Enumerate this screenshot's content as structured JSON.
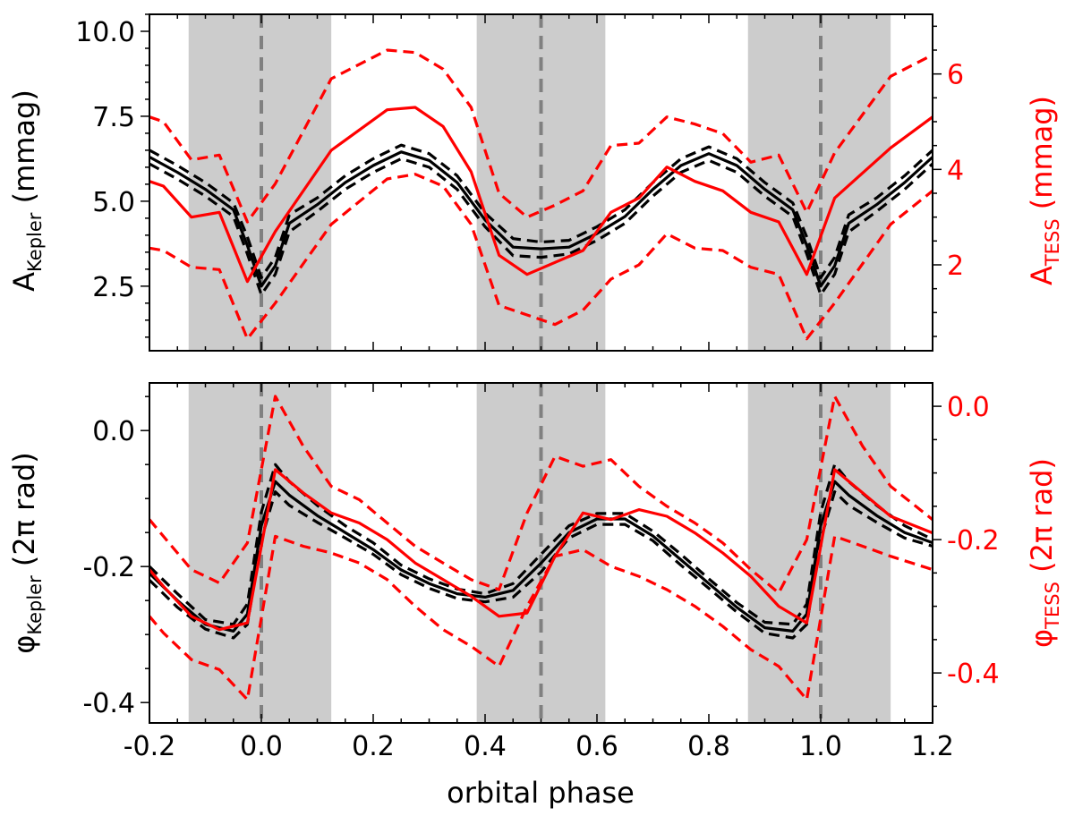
{
  "colors": {
    "kepler": "#000000",
    "tess": "#ff0000",
    "shade": "#cccccc",
    "eclipse_line": "#808080"
  },
  "chart_data": [
    {
      "panel": "top",
      "type": "line",
      "xlabel": "orbital phase",
      "xlim": [
        -0.2,
        1.2
      ],
      "x_ticks": [
        "-0.2",
        "0.0",
        "0.2",
        "0.4",
        "0.6",
        "0.8",
        "1.0",
        "1.2"
      ],
      "ylabel_left": {
        "main": "A",
        "sub": "Kepler",
        "unit": " (mmag)"
      },
      "ylim_left": [
        0.6,
        10.5
      ],
      "y_ticks_left": [
        "2.5",
        "5.0",
        "7.5",
        "10.0"
      ],
      "ylabel_right": {
        "main": "A",
        "sub": "TESS",
        "unit": " (mmag)"
      },
      "ylim_right": [
        0.2,
        7.25
      ],
      "y_ticks_right": [
        "2",
        "4",
        "6"
      ],
      "shaded_phase_ranges": [
        [
          -0.13,
          0.125
        ],
        [
          0.385,
          0.615
        ],
        [
          0.87,
          1.125
        ]
      ],
      "eclipse_phases": [
        0.0,
        0.5,
        1.0
      ],
      "series": [
        {
          "axis": "left",
          "color": "kepler",
          "style": "solid",
          "x": [
            -0.2,
            -0.15,
            -0.1,
            -0.05,
            -0.025,
            0,
            0.025,
            0.05,
            0.1,
            0.15,
            0.2,
            0.25,
            0.3,
            0.35,
            0.4,
            0.45,
            0.5,
            0.55,
            0.6,
            0.65,
            0.7,
            0.75,
            0.8,
            0.85,
            0.9,
            0.95,
            0.975,
            1,
            1.025,
            1.05,
            1.1,
            1.15,
            1.2
          ],
          "y": [
            6.3,
            5.85,
            5.35,
            4.75,
            3.7,
            2.5,
            3.1,
            4.35,
            4.9,
            5.55,
            6.05,
            6.45,
            6.2,
            5.55,
            4.45,
            3.65,
            3.6,
            3.65,
            4.05,
            4.55,
            5.35,
            6.05,
            6.4,
            6.05,
            5.35,
            4.75,
            3.7,
            2.5,
            3.1,
            4.35,
            4.9,
            5.55,
            6.3
          ]
        },
        {
          "axis": "left",
          "color": "kepler",
          "style": "dashed",
          "x": [
            -0.2,
            -0.15,
            -0.1,
            -0.05,
            -0.025,
            0,
            0.025,
            0.05,
            0.1,
            0.15,
            0.2,
            0.25,
            0.3,
            0.35,
            0.4,
            0.45,
            0.5,
            0.55,
            0.6,
            0.65,
            0.7,
            0.75,
            0.8,
            0.85,
            0.9,
            0.95,
            0.975,
            1,
            1.025,
            1.05,
            1.1,
            1.15,
            1.2
          ],
          "y": [
            6.5,
            6.05,
            5.55,
            4.95,
            3.95,
            2.75,
            3.35,
            4.6,
            5.1,
            5.75,
            6.25,
            6.65,
            6.4,
            5.75,
            4.65,
            3.9,
            3.8,
            3.85,
            4.25,
            4.75,
            5.55,
            6.25,
            6.6,
            6.25,
            5.55,
            4.95,
            3.95,
            2.75,
            3.35,
            4.6,
            5.1,
            5.75,
            6.5
          ]
        },
        {
          "axis": "left",
          "color": "kepler",
          "style": "dashed",
          "x": [
            -0.2,
            -0.15,
            -0.1,
            -0.05,
            -0.025,
            0,
            0.025,
            0.05,
            0.1,
            0.15,
            0.2,
            0.25,
            0.3,
            0.35,
            0.4,
            0.45,
            0.5,
            0.55,
            0.6,
            0.65,
            0.7,
            0.75,
            0.8,
            0.85,
            0.9,
            0.95,
            0.975,
            1,
            1.025,
            1.05,
            1.1,
            1.15,
            1.2
          ],
          "y": [
            6.1,
            5.65,
            5.15,
            4.55,
            3.45,
            2.25,
            2.85,
            4.1,
            4.7,
            5.35,
            5.85,
            6.25,
            6.0,
            5.35,
            4.25,
            3.4,
            3.35,
            3.45,
            3.85,
            4.35,
            5.15,
            5.85,
            6.2,
            5.85,
            5.15,
            4.55,
            3.45,
            2.25,
            2.85,
            4.1,
            4.7,
            5.35,
            6.1
          ]
        },
        {
          "axis": "right",
          "color": "tess",
          "style": "solid",
          "x": [
            -0.2,
            -0.175,
            -0.125,
            -0.075,
            -0.025,
            0.025,
            0.125,
            0.225,
            0.275,
            0.325,
            0.375,
            0.425,
            0.475,
            0.525,
            0.575,
            0.625,
            0.675,
            0.725,
            0.775,
            0.825,
            0.875,
            0.925,
            0.975,
            1.025,
            1.125,
            1.2
          ],
          "y": [
            3.75,
            3.65,
            3.0,
            3.1,
            1.65,
            2.7,
            4.4,
            5.25,
            5.3,
            4.9,
            3.95,
            2.2,
            1.8,
            2.05,
            2.3,
            3.1,
            3.4,
            4.05,
            3.75,
            3.55,
            3.1,
            2.9,
            1.8,
            3.4,
            4.45,
            5.1
          ]
        },
        {
          "axis": "right",
          "color": "tess",
          "style": "dashed",
          "x": [
            -0.2,
            -0.175,
            -0.125,
            -0.075,
            -0.025,
            0.025,
            0.125,
            0.225,
            0.275,
            0.325,
            0.375,
            0.425,
            0.475,
            0.525,
            0.575,
            0.625,
            0.675,
            0.725,
            0.775,
            0.825,
            0.875,
            0.925,
            0.975,
            1.025,
            1.125,
            1.2
          ],
          "y": [
            5.1,
            5.0,
            4.2,
            4.3,
            2.9,
            3.7,
            5.9,
            6.5,
            6.45,
            6.1,
            5.3,
            3.5,
            3.0,
            3.25,
            3.55,
            4.5,
            4.55,
            5.1,
            4.95,
            4.75,
            4.15,
            4.3,
            3.1,
            4.35,
            5.95,
            6.4
          ]
        },
        {
          "axis": "right",
          "color": "tess",
          "style": "dashed",
          "x": [
            -0.2,
            -0.175,
            -0.125,
            -0.075,
            -0.025,
            0.025,
            0.125,
            0.225,
            0.275,
            0.325,
            0.375,
            0.425,
            0.475,
            0.525,
            0.575,
            0.625,
            0.675,
            0.725,
            0.775,
            0.825,
            0.875,
            0.925,
            0.975,
            1.025,
            1.125,
            1.2
          ],
          "y": [
            2.35,
            2.3,
            1.95,
            1.9,
            0.45,
            1.2,
            2.85,
            3.8,
            3.9,
            3.65,
            2.85,
            1.15,
            0.95,
            0.75,
            1.05,
            1.7,
            2.0,
            2.65,
            2.35,
            2.3,
            1.95,
            1.8,
            0.45,
            1.2,
            2.85,
            3.55
          ]
        }
      ]
    },
    {
      "panel": "bottom",
      "type": "line",
      "xlabel": "orbital phase",
      "xlim": [
        -0.2,
        1.2
      ],
      "x_ticks": [
        "-0.2",
        "0.0",
        "0.2",
        "0.4",
        "0.6",
        "0.8",
        "1.0",
        "1.2"
      ],
      "ylabel_left": {
        "main": "φ",
        "sub": "Kepler",
        "unit": " (2π rad)"
      },
      "ylim_left": [
        -0.43,
        0.07
      ],
      "y_ticks_left": [
        "-0.4",
        "-0.2",
        "0.0"
      ],
      "ylabel_right": {
        "main": "φ",
        "sub": "TESS",
        "unit": " (2π rad)"
      },
      "ylim_right": [
        -0.475,
        0.035
      ],
      "y_ticks_right": [
        "-0.4",
        "-0.2",
        "0.0"
      ],
      "shaded_phase_ranges": [
        [
          -0.13,
          0.125
        ],
        [
          0.385,
          0.615
        ],
        [
          0.87,
          1.125
        ]
      ],
      "eclipse_phases": [
        0.0,
        0.5,
        1.0
      ],
      "series": [
        {
          "axis": "left",
          "color": "kepler",
          "style": "solid",
          "x": [
            -0.2,
            -0.15,
            -0.1,
            -0.05,
            -0.025,
            0,
            0.025,
            0.05,
            0.1,
            0.15,
            0.2,
            0.25,
            0.3,
            0.35,
            0.4,
            0.45,
            0.5,
            0.55,
            0.6,
            0.65,
            0.7,
            0.75,
            0.8,
            0.85,
            0.9,
            0.95,
            0.975,
            1,
            1.025,
            1.05,
            1.1,
            1.15,
            1.2
          ],
          "y": [
            -0.21,
            -0.25,
            -0.285,
            -0.295,
            -0.27,
            -0.14,
            -0.075,
            -0.095,
            -0.125,
            -0.15,
            -0.175,
            -0.205,
            -0.225,
            -0.24,
            -0.245,
            -0.235,
            -0.195,
            -0.15,
            -0.13,
            -0.13,
            -0.155,
            -0.19,
            -0.225,
            -0.26,
            -0.29,
            -0.295,
            -0.27,
            -0.14,
            -0.075,
            -0.095,
            -0.125,
            -0.15,
            -0.165
          ]
        },
        {
          "axis": "left",
          "color": "kepler",
          "style": "dashed",
          "x": [
            -0.2,
            -0.15,
            -0.1,
            -0.05,
            -0.025,
            0,
            0.025,
            0.05,
            0.1,
            0.15,
            0.2,
            0.25,
            0.3,
            0.35,
            0.4,
            0.45,
            0.5,
            0.55,
            0.6,
            0.65,
            0.7,
            0.75,
            0.8,
            0.85,
            0.9,
            0.95,
            0.975,
            1,
            1.025,
            1.05,
            1.1,
            1.15,
            1.2
          ],
          "y": [
            -0.2,
            -0.24,
            -0.278,
            -0.285,
            -0.255,
            -0.12,
            -0.05,
            -0.075,
            -0.11,
            -0.14,
            -0.165,
            -0.198,
            -0.218,
            -0.233,
            -0.24,
            -0.225,
            -0.182,
            -0.14,
            -0.122,
            -0.122,
            -0.148,
            -0.182,
            -0.218,
            -0.253,
            -0.282,
            -0.285,
            -0.255,
            -0.12,
            -0.05,
            -0.075,
            -0.11,
            -0.14,
            -0.16
          ]
        },
        {
          "axis": "left",
          "color": "kepler",
          "style": "dashed",
          "x": [
            -0.2,
            -0.15,
            -0.1,
            -0.05,
            -0.025,
            0,
            0.025,
            0.05,
            0.1,
            0.15,
            0.2,
            0.25,
            0.3,
            0.35,
            0.4,
            0.45,
            0.5,
            0.55,
            0.6,
            0.65,
            0.7,
            0.75,
            0.8,
            0.85,
            0.9,
            0.95,
            0.975,
            1,
            1.025,
            1.05,
            1.1,
            1.15,
            1.2
          ],
          "y": [
            -0.22,
            -0.26,
            -0.292,
            -0.305,
            -0.285,
            -0.16,
            -0.09,
            -0.11,
            -0.135,
            -0.158,
            -0.182,
            -0.212,
            -0.232,
            -0.247,
            -0.252,
            -0.245,
            -0.208,
            -0.158,
            -0.138,
            -0.138,
            -0.162,
            -0.198,
            -0.232,
            -0.267,
            -0.298,
            -0.305,
            -0.285,
            -0.16,
            -0.09,
            -0.11,
            -0.135,
            -0.158,
            -0.17
          ]
        },
        {
          "axis": "right",
          "color": "tess",
          "style": "solid",
          "x": [
            -0.2,
            -0.175,
            -0.125,
            -0.075,
            -0.025,
            0.025,
            0.075,
            0.125,
            0.175,
            0.225,
            0.275,
            0.325,
            0.375,
            0.425,
            0.475,
            0.525,
            0.575,
            0.625,
            0.675,
            0.725,
            0.775,
            0.825,
            0.875,
            0.925,
            0.975,
            1.025,
            1.075,
            1.125,
            1.2
          ],
          "y": [
            -0.245,
            -0.27,
            -0.315,
            -0.335,
            -0.325,
            -0.095,
            -0.13,
            -0.16,
            -0.175,
            -0.2,
            -0.235,
            -0.26,
            -0.285,
            -0.315,
            -0.31,
            -0.225,
            -0.16,
            -0.17,
            -0.155,
            -0.165,
            -0.19,
            -0.22,
            -0.255,
            -0.3,
            -0.325,
            -0.095,
            -0.13,
            -0.165,
            -0.19
          ]
        },
        {
          "axis": "right",
          "color": "tess",
          "style": "dashed",
          "x": [
            -0.2,
            -0.175,
            -0.125,
            -0.075,
            -0.025,
            0.025,
            0.075,
            0.125,
            0.175,
            0.225,
            0.275,
            0.325,
            0.375,
            0.425,
            0.475,
            0.525,
            0.575,
            0.625,
            0.675,
            0.725,
            0.775,
            0.825,
            0.875,
            0.925,
            0.975,
            1.025,
            1.075,
            1.125,
            1.2
          ],
          "y": [
            -0.17,
            -0.195,
            -0.245,
            -0.265,
            -0.205,
            0.015,
            -0.06,
            -0.12,
            -0.14,
            -0.175,
            -0.21,
            -0.235,
            -0.26,
            -0.275,
            -0.16,
            -0.075,
            -0.09,
            -0.08,
            -0.12,
            -0.15,
            -0.175,
            -0.205,
            -0.245,
            -0.28,
            -0.2,
            0.015,
            -0.06,
            -0.12,
            -0.17
          ]
        },
        {
          "axis": "right",
          "color": "tess",
          "style": "dashed",
          "x": [
            -0.2,
            -0.175,
            -0.125,
            -0.075,
            -0.025,
            0.025,
            0.075,
            0.125,
            0.175,
            0.225,
            0.275,
            0.325,
            0.375,
            0.425,
            0.475,
            0.525,
            0.575,
            0.625,
            0.675,
            0.725,
            0.775,
            0.825,
            0.875,
            0.925,
            0.975,
            1.025,
            1.075,
            1.125,
            1.2
          ],
          "y": [
            -0.315,
            -0.34,
            -0.38,
            -0.395,
            -0.44,
            -0.195,
            -0.21,
            -0.22,
            -0.235,
            -0.26,
            -0.3,
            -0.335,
            -0.36,
            -0.39,
            -0.3,
            -0.225,
            -0.215,
            -0.24,
            -0.255,
            -0.275,
            -0.3,
            -0.33,
            -0.365,
            -0.39,
            -0.44,
            -0.195,
            -0.21,
            -0.225,
            -0.245
          ]
        }
      ]
    }
  ]
}
